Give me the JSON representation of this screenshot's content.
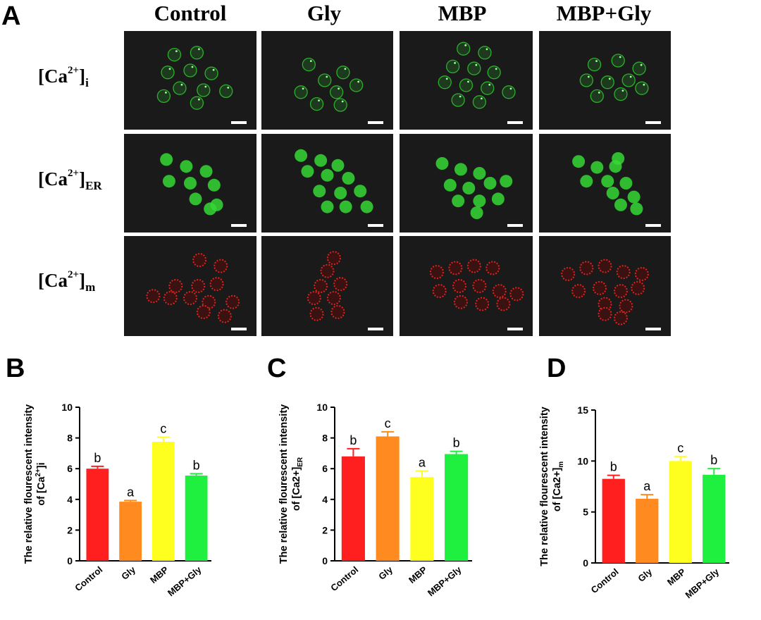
{
  "figure": {
    "panel_a_letter": "A",
    "columns": [
      "Control",
      "Gly",
      "MBP",
      "MBP+Gly"
    ],
    "rows": [
      {
        "base": "[Ca",
        "sup": "2+",
        "close": "]",
        "sub": "i",
        "channel_color": "#2fd12f"
      },
      {
        "base": "[Ca",
        "sup": "2+",
        "close": "]",
        "sub": "ER",
        "channel_color": "#35d835"
      },
      {
        "base": "[Ca",
        "sup": "2+",
        "close": "]",
        "sub": "m",
        "channel_color": "#e0221c"
      }
    ]
  },
  "colors": {
    "Control": "#ff1f1f",
    "Gly": "#ff8a1f",
    "MBP": "#ffff1f",
    "MBP+Gly": "#1fef3f",
    "axis": "#000000",
    "micrograph_bg": "#1a1a1a"
  },
  "chart_data": [
    {
      "panel": "B",
      "type": "bar",
      "ylabel_line1": "The relative flourescent intensity",
      "ylabel_line2": {
        "pre": "of [Ca",
        "sup": "2+",
        "post": "]i",
        "sub": ""
      },
      "categories": [
        "Control",
        "Gly",
        "MBP",
        "MBP+Gly"
      ],
      "values": [
        6.0,
        3.85,
        7.75,
        5.55
      ],
      "errors": [
        0.15,
        0.08,
        0.3,
        0.12
      ],
      "letters": [
        "b",
        "a",
        "c",
        "b"
      ],
      "ylim": [
        0,
        10
      ],
      "yticks": [
        "0",
        "2",
        "4",
        "6",
        "8",
        "10"
      ],
      "ytick_values": [
        0,
        2,
        4,
        6,
        8,
        10
      ]
    },
    {
      "panel": "C",
      "type": "bar",
      "ylabel_line1": "The relative flourescent intensity",
      "ylabel_line2": {
        "pre": "of [Ca2+]",
        "sup": "",
        "post": "",
        "sub": "ER"
      },
      "categories": [
        "Control",
        "Gly",
        "MBP",
        "MBP+Gly"
      ],
      "values": [
        6.8,
        8.1,
        5.45,
        6.95
      ],
      "errors": [
        0.5,
        0.3,
        0.4,
        0.18
      ],
      "letters": [
        "b",
        "c",
        "a",
        "b"
      ],
      "ylim": [
        0,
        10
      ],
      "yticks": [
        "0",
        "2",
        "4",
        "6",
        "8",
        "10"
      ],
      "ytick_values": [
        0,
        2,
        4,
        6,
        8,
        10
      ]
    },
    {
      "panel": "D",
      "type": "bar",
      "ylabel_line1": "The relative flourescent intensity",
      "ylabel_line2": {
        "pre": "of [Ca2+]",
        "sup": "",
        "post": "",
        "sub": "m"
      },
      "categories": [
        "Control",
        "Gly",
        "MBP",
        "MBP+Gly"
      ],
      "values": [
        8.25,
        6.3,
        10.0,
        8.65
      ],
      "errors": [
        0.35,
        0.4,
        0.45,
        0.6
      ],
      "letters": [
        "b",
        "a",
        "c",
        "b"
      ],
      "ylim": [
        0,
        15
      ],
      "yticks": [
        "0",
        "5",
        "10",
        "15"
      ],
      "ytick_values": [
        0,
        5,
        10,
        15
      ]
    }
  ]
}
